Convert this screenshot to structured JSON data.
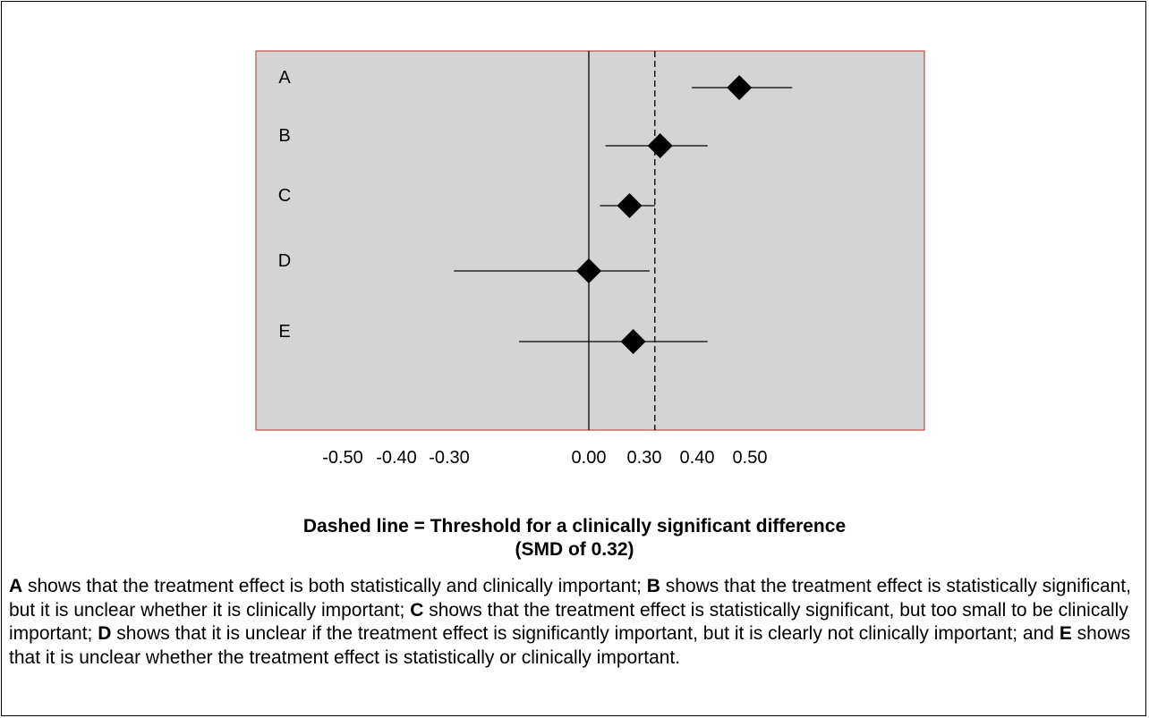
{
  "chart_data": {
    "type": "forest",
    "rows": [
      {
        "label": "A",
        "estimate": 0.48,
        "ci_low": 0.39,
        "ci_high": 0.58
      },
      {
        "label": "B",
        "estimate": 0.33,
        "ci_low": 0.09,
        "ci_high": 0.42
      },
      {
        "label": "C",
        "estimate": 0.22,
        "ci_low": 0.06,
        "ci_high": 0.32
      },
      {
        "label": "D",
        "estimate": 0.0,
        "ci_low": -0.29,
        "ci_high": 0.31
      },
      {
        "label": "E",
        "estimate": 0.24,
        "ci_low": -0.15,
        "ci_high": 0.42
      }
    ],
    "x_tick_labels": [
      "-0.50",
      "-0.40",
      "-0.30",
      "0.00",
      "0.30",
      "0.40",
      "0.50"
    ],
    "x_tick_values": [
      -0.5,
      -0.4,
      -0.3,
      0.0,
      0.3,
      0.4,
      0.5
    ],
    "reference_line": 0.0,
    "threshold_line": 0.32,
    "plot_background": "#d4d4d4",
    "plot_border_color": "#c0504d",
    "grid": false
  },
  "caption": {
    "line1": "Dashed line = Threshold for a clinically significant difference",
    "line2": "(SMD of 0.32)"
  },
  "explanation": [
    {
      "letter": "A",
      "text": " shows that the treatment effect is both statistically and clinically important; "
    },
    {
      "letter": "B",
      "text": " shows that the treatment effect is statistically significant, but it is unclear whether it is clinically important; "
    },
    {
      "letter": "C",
      "text": " shows that the treatment effect is statistically significant, but too small to be clinically important; "
    },
    {
      "letter": "D",
      "text": " shows that it is unclear if the treatment effect is significantly important, but it is clearly not clinically important; and "
    },
    {
      "letter": "E",
      "text": " shows that it is unclear whether the treatment effect is statistically or clinically important."
    }
  ]
}
